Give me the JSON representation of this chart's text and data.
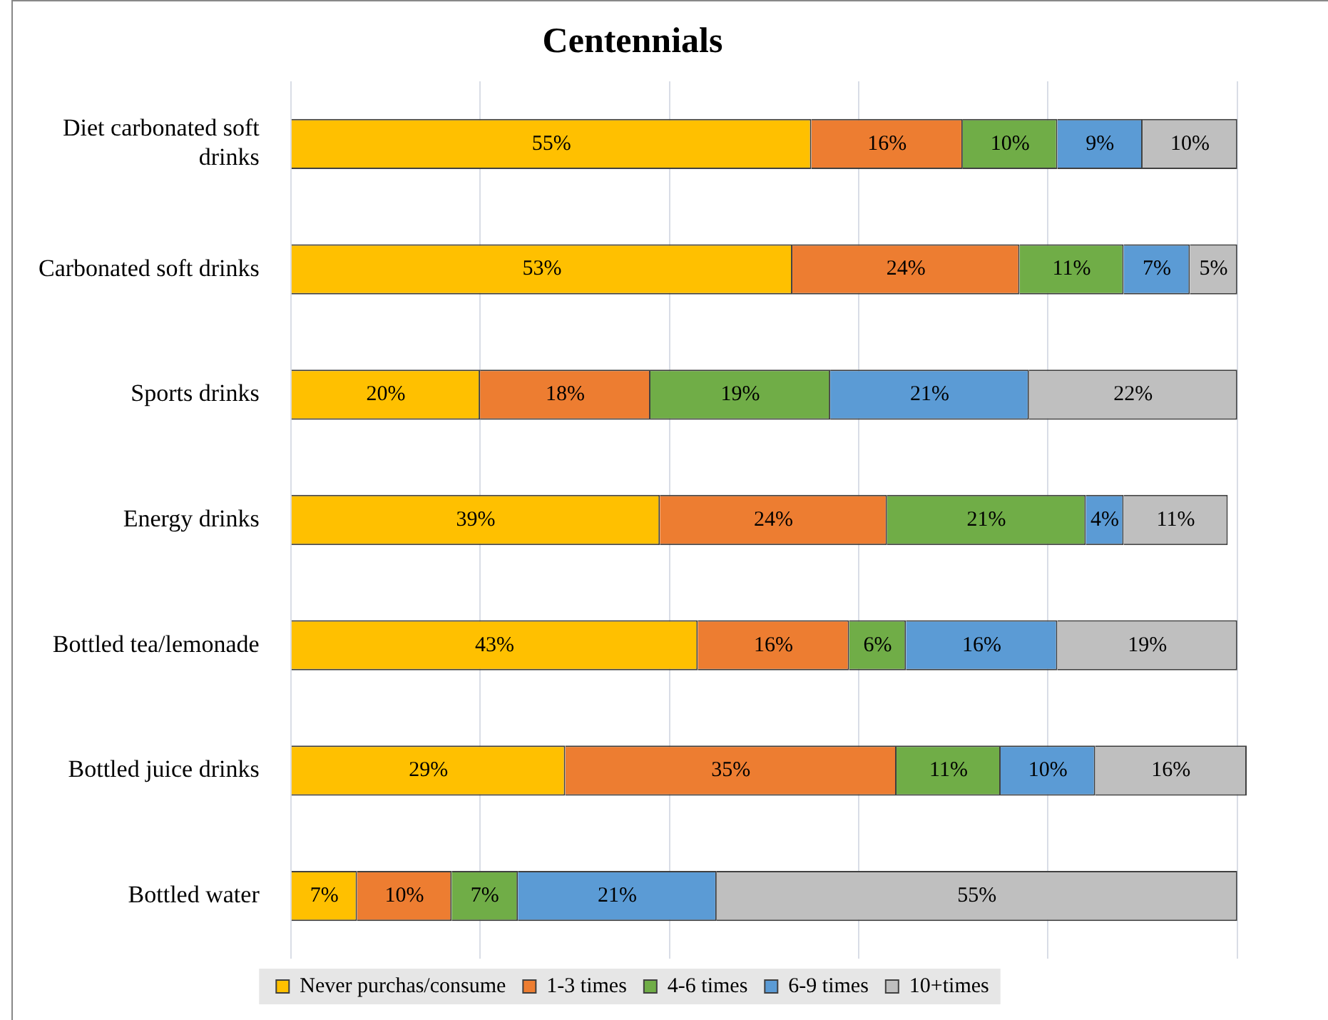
{
  "chart_data": {
    "type": "bar",
    "orientation": "horizontal",
    "stacked": true,
    "title": "Centennials",
    "categories": [
      "Diet carbonated soft drinks",
      "Carbonated soft drinks",
      "Sports drinks",
      "Energy drinks",
      "Bottled tea/lemonade",
      "Bottled juice drinks",
      "Bottled water"
    ],
    "series": [
      {
        "name": "Never purchas/consume",
        "color": "#ffc000",
        "values": [
          55,
          53,
          20,
          39,
          43,
          29,
          7
        ],
        "value_labels": [
          "55%",
          "53%",
          "20%",
          "39%",
          "43%",
          "29%",
          "7%"
        ]
      },
      {
        "name": "1-3 times",
        "color": "#ed7d31",
        "values": [
          16,
          24,
          18,
          24,
          16,
          35,
          10
        ],
        "value_labels": [
          "16%",
          "24%",
          "18%",
          "24%",
          "16%",
          "35%",
          "10%"
        ]
      },
      {
        "name": "4-6 times",
        "color": "#70ad47",
        "values": [
          10,
          11,
          19,
          21,
          6,
          11,
          7
        ],
        "value_labels": [
          "10%",
          "11%",
          "19%",
          "21%",
          "6%",
          "11%",
          "7%"
        ]
      },
      {
        "name": "6-9 times",
        "color": "#5b9bd5",
        "values": [
          9,
          7,
          21,
          4,
          16,
          10,
          21
        ],
        "value_labels": [
          "9%",
          "7%",
          "21%",
          "4%",
          "16%",
          "10%",
          "21%"
        ]
      },
      {
        "name": "10+times",
        "color": "#bfbfbf",
        "values": [
          10,
          5,
          22,
          11,
          19,
          16,
          55
        ],
        "value_labels": [
          "10%",
          "5%",
          "22%",
          "11%",
          "19%",
          "16%",
          "55%"
        ]
      }
    ],
    "xlim": [
      0,
      101
    ],
    "xticks": [
      {
        "value": 0,
        "label": null
      },
      {
        "value": 20,
        "label": null
      },
      {
        "value": 40,
        "label": null
      },
      {
        "value": 60,
        "label": null
      },
      {
        "value": 80,
        "label": null
      },
      {
        "value": 100,
        "label": null
      }
    ],
    "grid": "x",
    "tick_labels": "y",
    "legend": "bottom"
  }
}
